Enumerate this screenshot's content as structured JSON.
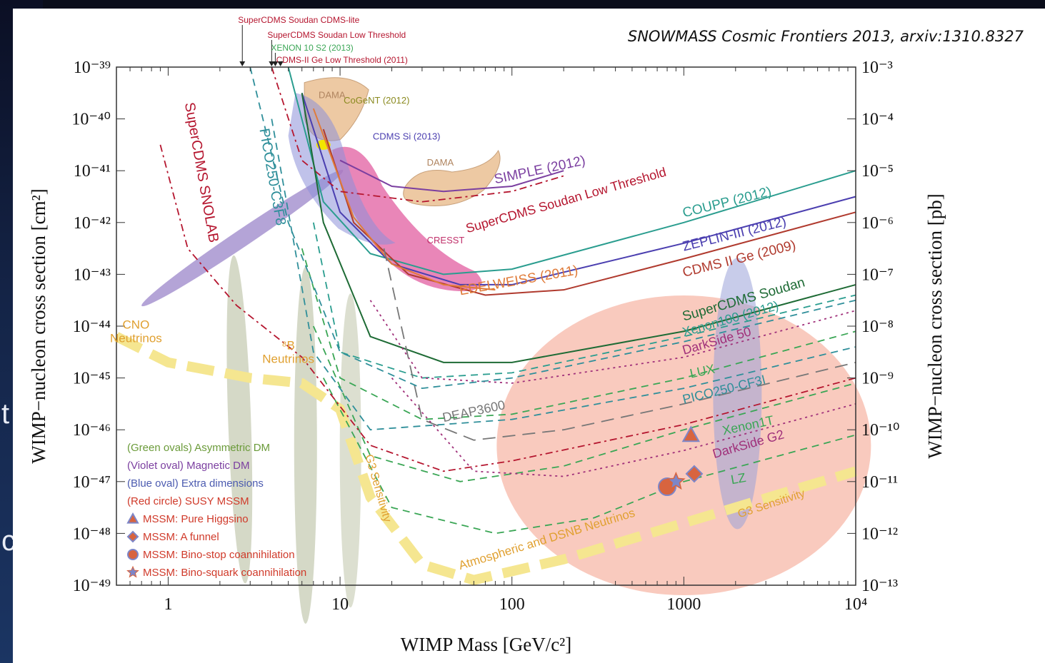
{
  "slide_fragments": [
    "t",
    "c"
  ],
  "chart_data": {
    "type": "line",
    "title": "SNOWMASS Cosmic Frontiers 2013, arxiv:1310.8327",
    "xlabel": "WIMP Mass [GeV/c²]",
    "ylabel_left": "WIMP−nucleon cross section [cm²]",
    "ylabel_right": "WIMP−nucleon cross section [pb]",
    "xscale": "log",
    "yscale": "log",
    "xlim": [
      0.5,
      10000
    ],
    "ylim": [
      -49,
      -39
    ],
    "x_ticks": [
      {
        "value": 1,
        "label": "1"
      },
      {
        "value": 10,
        "label": "10"
      },
      {
        "value": 100,
        "label": "100"
      },
      {
        "value": 1000,
        "label": "1000"
      },
      {
        "value": 10000,
        "label": "10⁴"
      }
    ],
    "y_ticks_left": [
      "10⁻³⁹",
      "10⁻⁴⁰",
      "10⁻⁴¹",
      "10⁻⁴²",
      "10⁻⁴³",
      "10⁻⁴⁴",
      "10⁻⁴⁵",
      "10⁻⁴⁶",
      "10⁻⁴⁷",
      "10⁻⁴⁸",
      "10⁻⁴⁹"
    ],
    "y_ticks_right": [
      "10⁻³",
      "10⁻⁴",
      "10⁻⁵",
      "10⁻⁶",
      "10⁻⁷",
      "10⁻⁸",
      "10⁻⁹",
      "10⁻¹⁰",
      "10⁻¹¹",
      "10⁻¹²",
      "10⁻¹³"
    ],
    "series": [
      {
        "name": "COUPP (2012)",
        "color": "#2a9d8f",
        "style": "solid",
        "points": [
          [
            5,
            -39
          ],
          [
            8,
            -41.6
          ],
          [
            15,
            -42.6
          ],
          [
            40,
            -43
          ],
          [
            100,
            -42.9
          ],
          [
            1000,
            -42
          ],
          [
            10000,
            -41
          ]
        ]
      },
      {
        "name": "ZEPLIN-III (2012)",
        "color": "#4b3fb0",
        "style": "solid",
        "points": [
          [
            6,
            -39.5
          ],
          [
            10,
            -41.8
          ],
          [
            20,
            -42.8
          ],
          [
            50,
            -43.2
          ],
          [
            100,
            -43.2
          ],
          [
            1000,
            -42.4
          ],
          [
            10000,
            -41.5
          ]
        ]
      },
      {
        "name": "CDMS II Ge (2009)",
        "color": "#b03a2e",
        "style": "solid",
        "points": [
          [
            8,
            -40.2
          ],
          [
            12,
            -42
          ],
          [
            25,
            -43
          ],
          [
            70,
            -43.4
          ],
          [
            200,
            -43.3
          ],
          [
            1000,
            -42.7
          ],
          [
            10000,
            -41.8
          ]
        ]
      },
      {
        "name": "EDELWEISS (2011)",
        "color": "#e07b39",
        "style": "solid",
        "points": [
          [
            7,
            -39.8
          ],
          [
            12,
            -41.9
          ],
          [
            20,
            -42.8
          ],
          [
            40,
            -43.2
          ],
          [
            80,
            -43.3
          ]
        ]
      },
      {
        "name": "SIMPLE (2012)",
        "color": "#7b3fa0",
        "style": "solid",
        "points": [
          [
            10,
            -40.8
          ],
          [
            20,
            -41.3
          ],
          [
            40,
            -41.4
          ],
          [
            100,
            -41.3
          ],
          [
            200,
            -41
          ]
        ]
      },
      {
        "name": "SuperCDMS Soudan Low Threshold",
        "color": "#b5162f",
        "style": "dashdot",
        "points": [
          [
            4,
            -39
          ],
          [
            6,
            -40.8
          ],
          [
            10,
            -41.4
          ],
          [
            30,
            -41.6
          ],
          [
            100,
            -41.4
          ],
          [
            200,
            -41.1
          ]
        ]
      },
      {
        "name": "SuperCDMS Soudan",
        "color": "#1e6b35",
        "style": "solid",
        "points": [
          [
            6,
            -39.5
          ],
          [
            8,
            -42
          ],
          [
            15,
            -44.2
          ],
          [
            40,
            -44.7
          ],
          [
            100,
            -44.7
          ],
          [
            1000,
            -44.1
          ],
          [
            10000,
            -43.2
          ]
        ]
      },
      {
        "name": "Xenon100 (2012)",
        "color": "#2a9d8f",
        "style": "dashed",
        "points": [
          [
            7,
            -42
          ],
          [
            10,
            -44.5
          ],
          [
            30,
            -45
          ],
          [
            100,
            -44.9
          ],
          [
            1000,
            -44.2
          ],
          [
            10000,
            -43.4
          ]
        ]
      },
      {
        "name": "DarkSide 50",
        "color": "#a0307a",
        "style": "dotted",
        "points": [
          [
            15,
            -43.5
          ],
          [
            30,
            -45
          ],
          [
            100,
            -45.1
          ],
          [
            1000,
            -44.6
          ],
          [
            10000,
            -43.7
          ]
        ]
      },
      {
        "name": "LUX",
        "color": "#3aa655",
        "style": "dashed",
        "points": [
          [
            6,
            -42.5
          ],
          [
            10,
            -45
          ],
          [
            30,
            -45.8
          ],
          [
            100,
            -45.7
          ],
          [
            1000,
            -45
          ],
          [
            10000,
            -44.1
          ]
        ]
      },
      {
        "name": "PICO250-CF3I",
        "color": "#2f8f9a",
        "style": "dashed",
        "points": [
          [
            4,
            -40
          ],
          [
            7,
            -44.5
          ],
          [
            15,
            -46
          ],
          [
            100,
            -45.8
          ],
          [
            1000,
            -45.2
          ],
          [
            10000,
            -44.4
          ]
        ]
      },
      {
        "name": "DEAP3600",
        "color": "#777777",
        "style": "longdash",
        "points": [
          [
            18,
            -42.5
          ],
          [
            30,
            -45.8
          ],
          [
            60,
            -46.2
          ],
          [
            200,
            -46
          ],
          [
            1000,
            -45.5
          ],
          [
            10000,
            -44.7
          ]
        ]
      },
      {
        "name": "Xenon1T",
        "color": "#3aa655",
        "style": "dashed",
        "points": [
          [
            7,
            -44
          ],
          [
            15,
            -46.5
          ],
          [
            50,
            -47
          ],
          [
            200,
            -46.7
          ],
          [
            1000,
            -46
          ],
          [
            10000,
            -45.1
          ]
        ]
      },
      {
        "name": "DarkSide G2",
        "color": "#a0307a",
        "style": "dotted",
        "points": [
          [
            20,
            -45
          ],
          [
            60,
            -46.8
          ],
          [
            200,
            -46.9
          ],
          [
            1000,
            -46.4
          ],
          [
            10000,
            -45.5
          ]
        ]
      },
      {
        "name": "LZ",
        "color": "#3aa655",
        "style": "dashed",
        "points": [
          [
            8,
            -45
          ],
          [
            20,
            -47.5
          ],
          [
            80,
            -48
          ],
          [
            300,
            -47.7
          ],
          [
            1000,
            -47
          ],
          [
            10000,
            -46.1
          ]
        ]
      },
      {
        "name": "PICO250-C3F8",
        "color": "#2f8f9a",
        "style": "dashed",
        "points": [
          [
            3,
            -39
          ],
          [
            5,
            -42
          ],
          [
            10,
            -44.5
          ],
          [
            30,
            -45.2
          ],
          [
            100,
            -45
          ],
          [
            1000,
            -44.3
          ],
          [
            10000,
            -43.5
          ]
        ]
      },
      {
        "name": "SuperCDMS SNOLAB",
        "color": "#b5162f",
        "style": "dashdot",
        "points": [
          [
            0.9,
            -40.5
          ],
          [
            1.3,
            -42.5
          ],
          [
            2.5,
            -43.6
          ],
          [
            6,
            -44.6
          ],
          [
            15,
            -46.3
          ],
          [
            40,
            -46.8
          ],
          [
            100,
            -46.6
          ],
          [
            1000,
            -45.9
          ],
          [
            10000,
            -45
          ]
        ]
      }
    ],
    "neutrino_floor": {
      "name": "G3 Sensitivity",
      "color": "#f5e690",
      "points": [
        [
          0.5,
          -44.2
        ],
        [
          1,
          -44.7
        ],
        [
          3,
          -45
        ],
        [
          6,
          -45.1
        ],
        [
          10,
          -45.6
        ],
        [
          15,
          -47.3
        ],
        [
          30,
          -48.6
        ],
        [
          60,
          -48.9
        ],
        [
          200,
          -48.5
        ],
        [
          1000,
          -47.8
        ],
        [
          10000,
          -46.8
        ]
      ]
    },
    "regions": [
      {
        "name": "DAMA",
        "color": "#edc9a3"
      },
      {
        "name": "DAMA",
        "color": "#edc9a3"
      },
      {
        "name": "CRESST",
        "color": "#e0529a"
      },
      {
        "name": "CoGeNT (2012)",
        "color": "#f2e600"
      },
      {
        "name": "CDMS Si (2013)",
        "color": "#8d90d9"
      }
    ],
    "legend": [
      {
        "label": "(Green ovals) Asymmetric DM",
        "color": "#6b9b3a"
      },
      {
        "label": "(Violet oval) Magnetic DM",
        "color": "#7b3fa0"
      },
      {
        "label": "(Blue oval) Extra dimensions",
        "color": "#4c5bb0"
      },
      {
        "label": "(Red circle) SUSY MSSM",
        "color": "#d03a2a"
      },
      {
        "label": "MSSM: Pure Higgsino",
        "color": "#d03a2a",
        "marker": "triangle"
      },
      {
        "label": "MSSM: A funnel",
        "color": "#d03a2a",
        "marker": "diamond"
      },
      {
        "label": "MSSM: Bino-stop coannihilation",
        "color": "#d03a2a",
        "marker": "circle"
      },
      {
        "label": "MSSM: Bino-squark coannihilation",
        "color": "#d03a2a",
        "marker": "star"
      }
    ],
    "top_annotations": [
      {
        "label": "SuperCDMS Soudan CDMS-lite",
        "color": "#b5162f"
      },
      {
        "label": "SuperCDMS Soudan Low Threshold",
        "color": "#b5162f"
      },
      {
        "label": "XENON 10 S2 (2013)",
        "color": "#3aa655"
      },
      {
        "label": "CDMS-II Ge Low Threshold (2011)",
        "color": "#b5162f"
      }
    ],
    "region_annotations": {
      "cno": "CNO\nNeutrinos",
      "b8": "⁸B\nNeutrinos",
      "atm": "Atmospheric and DSNB Neutrinos",
      "g3_left": "G3 Sensitivity",
      "g3_right": "G3 Sensitivity"
    }
  }
}
